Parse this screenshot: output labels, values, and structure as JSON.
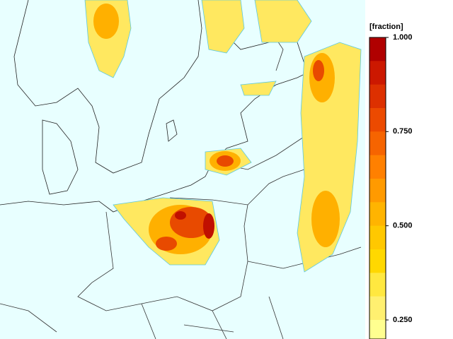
{
  "legend": {
    "title": "[fraction]",
    "ticks": [
      {
        "value": 1,
        "label": "1.000"
      },
      {
        "value": 0.75,
        "label": "0.750"
      },
      {
        "value": 0.5,
        "label": "0.500"
      },
      {
        "value": 0.25,
        "label": "0.250"
      }
    ],
    "colors": [
      "#b00000",
      "#cc1800",
      "#dd3000",
      "#ec4a00",
      "#f66400",
      "#ff8000",
      "#ff9a00",
      "#ffb400",
      "#ffc800",
      "#ffd800",
      "#ffe840",
      "#fff070",
      "#ffff90"
    ]
  }
}
